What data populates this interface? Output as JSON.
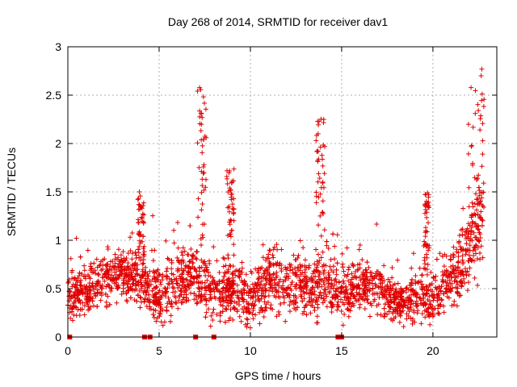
{
  "chart_data": {
    "type": "scatter",
    "title": "Day 268 of 2014, SRMTID for receiver dav1",
    "xlabel": "GPS time / hours",
    "ylabel": "SRMTID / TECUs",
    "xlim": [
      0,
      23.5
    ],
    "ylim": [
      0,
      3
    ],
    "xticks": [
      0,
      5,
      10,
      15,
      20
    ],
    "xtick_labels": [
      "0",
      "5",
      "10",
      "15",
      "20"
    ],
    "yticks": [
      0,
      0.5,
      1,
      1.5,
      2,
      2.5,
      3
    ],
    "ytick_labels": [
      "0",
      "0.5",
      "1",
      "1.5",
      "2",
      "2.5",
      "3"
    ],
    "grid": true,
    "marker": "+",
    "color": "#e00000",
    "density_profile": [
      {
        "x": 0.0,
        "median": 0.4,
        "spread": 0.25
      },
      {
        "x": 1.0,
        "median": 0.45,
        "spread": 0.3
      },
      {
        "x": 2.0,
        "median": 0.6,
        "spread": 0.3
      },
      {
        "x": 3.0,
        "median": 0.65,
        "spread": 0.3
      },
      {
        "x": 4.0,
        "median": 0.6,
        "spread": 0.35
      },
      {
        "x": 5.0,
        "median": 0.4,
        "spread": 0.35
      },
      {
        "x": 6.0,
        "median": 0.55,
        "spread": 0.35
      },
      {
        "x": 7.0,
        "median": 0.65,
        "spread": 0.35
      },
      {
        "x": 8.0,
        "median": 0.45,
        "spread": 0.3
      },
      {
        "x": 9.0,
        "median": 0.5,
        "spread": 0.35
      },
      {
        "x": 10.0,
        "median": 0.4,
        "spread": 0.3
      },
      {
        "x": 11.0,
        "median": 0.6,
        "spread": 0.35
      },
      {
        "x": 12.0,
        "median": 0.55,
        "spread": 0.35
      },
      {
        "x": 13.0,
        "median": 0.5,
        "spread": 0.35
      },
      {
        "x": 14.0,
        "median": 0.55,
        "spread": 0.35
      },
      {
        "x": 15.0,
        "median": 0.45,
        "spread": 0.3
      },
      {
        "x": 16.0,
        "median": 0.55,
        "spread": 0.3
      },
      {
        "x": 17.0,
        "median": 0.5,
        "spread": 0.3
      },
      {
        "x": 18.0,
        "median": 0.35,
        "spread": 0.25
      },
      {
        "x": 19.0,
        "median": 0.4,
        "spread": 0.3
      },
      {
        "x": 20.0,
        "median": 0.4,
        "spread": 0.3
      },
      {
        "x": 21.0,
        "median": 0.6,
        "spread": 0.35
      },
      {
        "x": 22.0,
        "median": 0.9,
        "spread": 0.5
      },
      {
        "x": 22.7,
        "median": 1.2,
        "spread": 0.6
      }
    ],
    "spikes": [
      {
        "x_start": 3.8,
        "x_end": 4.2,
        "peak": 1.5
      },
      {
        "x_start": 7.1,
        "x_end": 7.6,
        "peak": 2.65
      },
      {
        "x_start": 8.7,
        "x_end": 9.1,
        "peak": 1.75
      },
      {
        "x_start": 13.6,
        "x_end": 14.1,
        "peak": 2.27
      },
      {
        "x_start": 19.5,
        "x_end": 19.8,
        "peak": 1.5
      },
      {
        "x_start": 21.9,
        "x_end": 22.8,
        "peak": 2.78
      }
    ],
    "zero_markers_x": [
      0.1,
      4.2,
      4.5,
      7.0,
      8.0,
      14.8,
      15.0
    ]
  }
}
